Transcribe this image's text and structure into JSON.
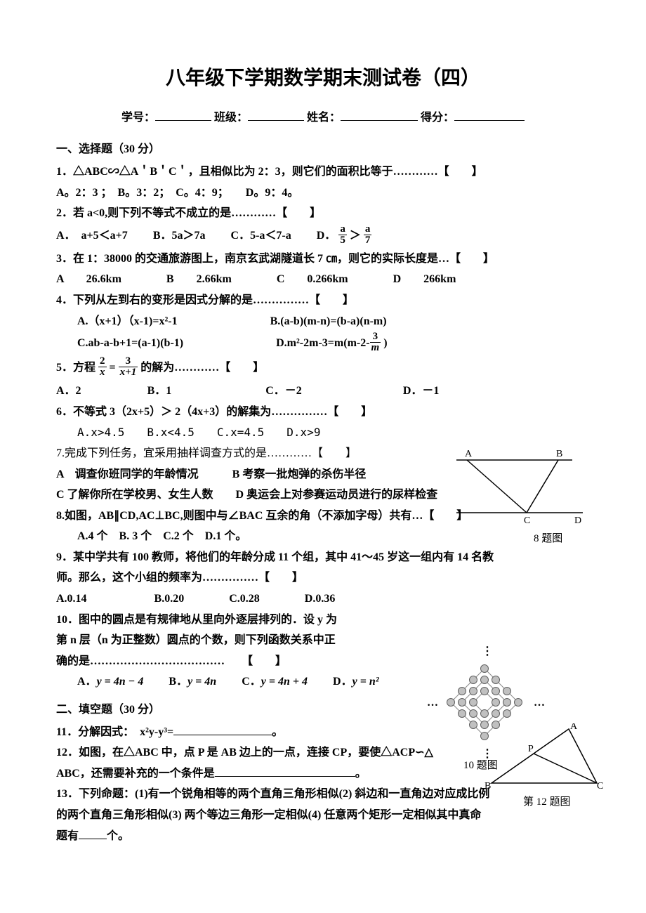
{
  "title": "八年级下学期数学期末测试卷（四）",
  "info": {
    "student_id_label": "学号：",
    "class_label": "班级：",
    "name_label": "姓名：",
    "score_label": "得分："
  },
  "section1": "一、选择题（30 分）",
  "q1": {
    "stem": "1．△ABC∽△A＇B＇C＇，且相似比为 2：3，则它们的面积比等于…………【　　】",
    "opts": "A。2：3 ；　B。3：2；　C。4：9；　　D。9：4。"
  },
  "q2": {
    "stem_prefix": "2．若 a<0,则下列不等式不成立的是…………【　　】",
    "A": "A．　a+5＜a+7",
    "B": "B．5a＞7a",
    "C": "C．5-a＜7-a",
    "D_prefix": "D．",
    "frac1_n": "a",
    "frac1_d": "5",
    "gt": "＞",
    "frac2_n": "a",
    "frac2_d": "7"
  },
  "q3": {
    "stem": "3．在 1：38000 的交通旅游图上，南京玄武湖隧道长 7 ㎝，则它的实际长度是…【　　】",
    "A": "A　　26.6km",
    "B": "B　　2.66km",
    "C": "C　　0.266km",
    "D": "D　　266km"
  },
  "q4": {
    "stem": "4．下列从左到右的变形是因式分解的是……………【　　】",
    "A": "A.（x+1）（x-1)=x²-1",
    "B": "B.(a-b)(m-n)=(b-a)(n-m)",
    "C": "C.ab-a-b+1=(a-1)(b-1)",
    "D_prefix": "D.m²-2m-3=m(m-2-",
    "D_frac_n": "3",
    "D_frac_d": "m",
    "D_suffix": " )"
  },
  "q5": {
    "prefix": "5．方程 ",
    "f1n": "2",
    "f1d": "x",
    "eq": " = ",
    "f2n": "3",
    "f2d": "x+1",
    "suffix": " 的解为…………【　　】",
    "opts_A": "A．2",
    "opts_B": "B．1",
    "opts_C": "C．－2",
    "opts_D": "D．－1"
  },
  "q6": {
    "stem": "6．不等式 3（2x+5）＞ 2（4x+3）的解集为……………【　　】",
    "opts": "A.x>4.5　　B.x<4.5　　C.x=4.5　　D.x>9"
  },
  "q7": {
    "stem": "7.完成下列任务，宜采用抽样调查方式的是…………【　　】",
    "line1": "A　调查你班同学的年龄情况　　　B 考察一批炮弹的杀伤半径",
    "line2": "C 了解你所在学校男、女生人数　　D 奥运会上对参赛运动员进行的尿样检查"
  },
  "q8": {
    "stem": "8.如图，AB∥CD,AC⊥BC,则图中与∠BAC 互余的角（不添加字母）共有…【　　】",
    "opts": "A.4 个　B. 3 个　C.2 个　D.1 个。"
  },
  "q9": {
    "line1": "9．某中学共有 100 教师，将他们的年龄分成 11 个组，其中 41～45 岁这一组内有 14 名教",
    "line2": "师。那么，这个小组的频率为……………【　　】",
    "opts": "A.0.14　　　　　　B.0.20　　　　C.0.28　　　　D.0.36"
  },
  "q10": {
    "line1": "10．图中的圆点是有规律地从里向外逐层排列的．设 y 为",
    "line2": "第 n 层（n 为正整数）圆点的个数，则下列函数关系中正",
    "line3": "确的是………………………………　　【　　】",
    "A": "A．",
    "A_eq": "y = 4n − 4",
    "B": "B．",
    "B_eq": "y = 4n",
    "C": "C．",
    "C_eq": "y = 4n + 4",
    "D": "D．",
    "D_eq": "y = n²"
  },
  "section2": "二、填空题（30 分）",
  "q11": {
    "prefix": "11．分解因式：　x²y-y³=",
    "suffix": "。"
  },
  "q12": {
    "line1": "12．如图，在△ABC 中，点 P 是 AB 边上的一点，连接 CP，要使△ACP∽△",
    "line2_prefix": "ABC，还需要补充的一个条件是",
    "line2_suffix": "。"
  },
  "q13": {
    "line1": "13．下列命题：(1)有一个锐角相等的两个直角三角形相似(2) 斜边和一直角边对应成比例",
    "line2": "的两个直角三角形相似(3) 两个等边三角形一定相似(4) 任意两个矩形一定相似其中真命",
    "line3_prefix": "题有",
    "line3_suffix": "个。"
  },
  "fig8": {
    "caption": "8 题图",
    "labels": {
      "A": "A",
      "B": "B",
      "C": "C",
      "D": "D"
    }
  },
  "fig10": {
    "caption": "10 题图"
  },
  "fig12": {
    "caption": "第 12 题图",
    "labels": {
      "A": "A",
      "B": "B",
      "C": "C",
      "P": "P"
    }
  },
  "colors": {
    "text": "#000000",
    "bg": "#ffffff",
    "stroke": "#000000",
    "dot_fill": "#c0c0c0",
    "dot_stroke": "#606060"
  }
}
